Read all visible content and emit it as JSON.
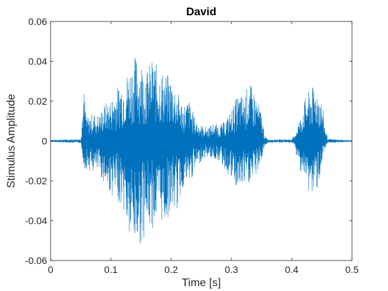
{
  "chart_data": {
    "type": "line",
    "title": "David",
    "xlabel": "Time [s]",
    "ylabel": "Stimulus Amplitude",
    "xlim": [
      0,
      0.5
    ],
    "ylim": [
      -0.06,
      0.06
    ],
    "x_ticks": [
      {
        "value": 0,
        "label": "0"
      },
      {
        "value": 0.1,
        "label": "0.1"
      },
      {
        "value": 0.2,
        "label": "0.2"
      },
      {
        "value": 0.3,
        "label": "0.3"
      },
      {
        "value": 0.4,
        "label": "0.4"
      },
      {
        "value": 0.5,
        "label": "0.5"
      }
    ],
    "y_ticks": [
      {
        "value": -0.06,
        "label": "-0.06"
      },
      {
        "value": -0.04,
        "label": "-0.04"
      },
      {
        "value": -0.02,
        "label": "-0.02"
      },
      {
        "value": 0,
        "label": "0"
      },
      {
        "value": 0.02,
        "label": "0.02"
      },
      {
        "value": 0.04,
        "label": "0.04"
      },
      {
        "value": 0.06,
        "label": "0.06"
      }
    ],
    "grid": false,
    "series": [
      {
        "color": "#0072BD",
        "x": [
          0,
          0.05,
          0.055,
          0.06,
          0.07,
          0.08,
          0.09,
          0.1,
          0.11,
          0.12,
          0.13,
          0.14,
          0.15,
          0.16,
          0.17,
          0.18,
          0.19,
          0.2,
          0.21,
          0.22,
          0.23,
          0.24,
          0.25,
          0.26,
          0.27,
          0.28,
          0.29,
          0.3,
          0.31,
          0.32,
          0.33,
          0.34,
          0.35,
          0.355,
          0.36,
          0.4,
          0.405,
          0.41,
          0.415,
          0.42,
          0.425,
          0.43,
          0.435,
          0.44,
          0.445,
          0.45,
          0.455,
          0.46,
          0.5
        ],
        "envelope_max": [
          0.0005,
          0.001,
          0.026,
          0.012,
          0.014,
          0.013,
          0.019,
          0.021,
          0.027,
          0.031,
          0.036,
          0.043,
          0.041,
          0.036,
          0.042,
          0.036,
          0.034,
          0.032,
          0.025,
          0.018,
          0.021,
          0.011,
          0.008,
          0.007,
          0.009,
          0.008,
          0.01,
          0.016,
          0.023,
          0.023,
          0.029,
          0.024,
          0.014,
          0.003,
          0.0008,
          0.0008,
          0.003,
          0.009,
          0.012,
          0.02,
          0.023,
          0.026,
          0.027,
          0.027,
          0.026,
          0.02,
          0.008,
          0.001,
          0.0003
        ],
        "envelope_min": [
          -0.0005,
          -0.001,
          -0.014,
          -0.014,
          -0.016,
          -0.016,
          -0.022,
          -0.027,
          -0.03,
          -0.033,
          -0.05,
          -0.054,
          -0.052,
          -0.045,
          -0.044,
          -0.04,
          -0.042,
          -0.035,
          -0.035,
          -0.023,
          -0.022,
          -0.015,
          -0.01,
          -0.008,
          -0.009,
          -0.01,
          -0.015,
          -0.02,
          -0.025,
          -0.023,
          -0.022,
          -0.018,
          -0.01,
          -0.003,
          -0.0008,
          -0.0008,
          -0.003,
          -0.011,
          -0.015,
          -0.017,
          -0.025,
          -0.026,
          -0.028,
          -0.025,
          -0.022,
          -0.012,
          -0.006,
          -0.001,
          -0.0003
        ]
      }
    ]
  }
}
